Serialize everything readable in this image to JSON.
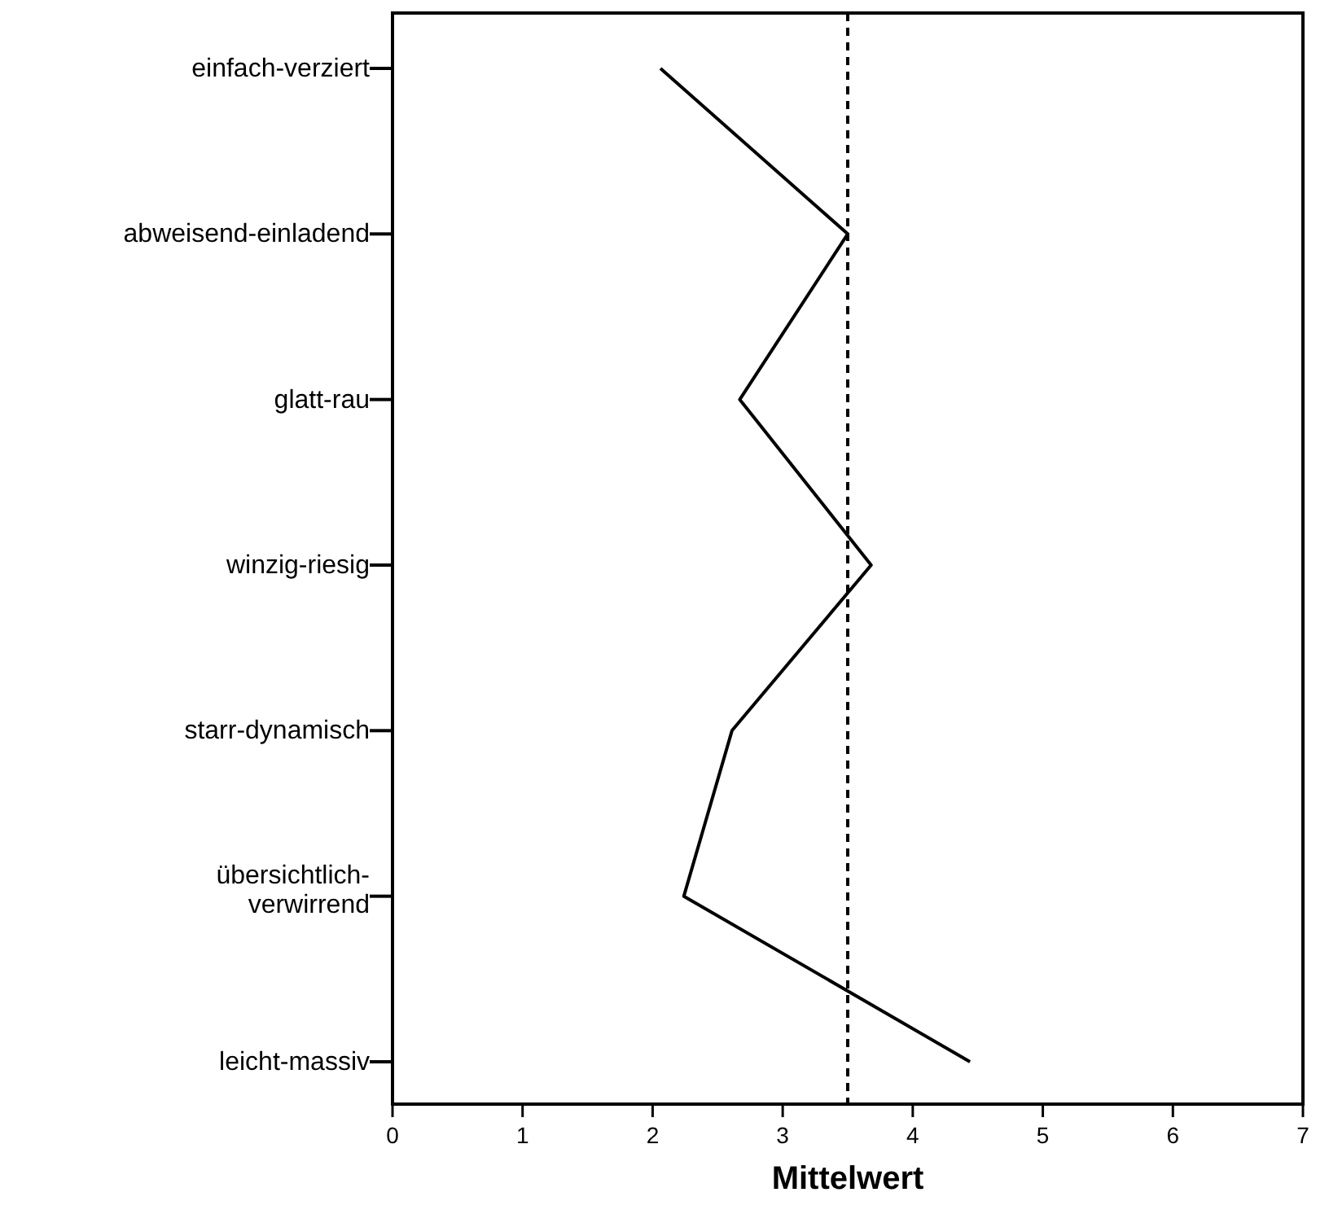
{
  "chart_data": {
    "type": "line",
    "orientation": "horizontal",
    "xlabel": "Mittelwert",
    "categories": [
      "einfach-verziert",
      "abweisend-einladend",
      "glatt-rau",
      "winzig-riesig",
      "starr-dynamisch",
      "übersichtlich-verwirrend",
      "leicht-massiv"
    ],
    "series": [
      {
        "color": "#000000",
        "values": [
          2.06,
          3.5,
          2.67,
          3.68,
          2.61,
          2.24,
          4.44
        ]
      }
    ],
    "xlim": [
      0,
      7
    ],
    "xticks": [
      0,
      1,
      2,
      3,
      4,
      5,
      6,
      7
    ],
    "ref_lines": [
      {
        "axis": "x",
        "value": 3.5,
        "line_style": "dashed",
        "color": "#000000"
      }
    ],
    "grid": false,
    "marker": "none"
  }
}
